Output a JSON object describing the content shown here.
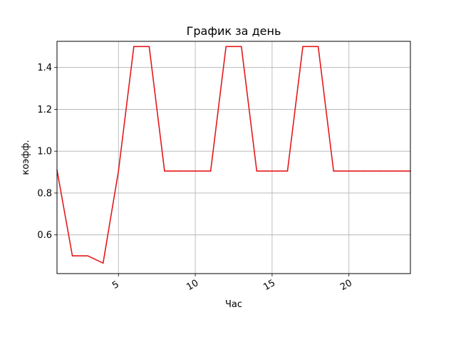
{
  "chart_data": {
    "type": "line",
    "title": "График за день",
    "xlabel": "Час",
    "ylabel": "коэфф.",
    "xlim": [
      1,
      24
    ],
    "ylim": [
      0.415,
      1.525
    ],
    "xticks": [
      5,
      10,
      15,
      20
    ],
    "yticks": [
      0.6,
      0.8,
      1.0,
      1.2,
      1.4
    ],
    "ytick_labels": [
      "0.6",
      "0.8",
      "1.0",
      "1.2",
      "1.4"
    ],
    "grid": true,
    "series": [
      {
        "color": "#e31a1c",
        "x": [
          1,
          2,
          3,
          4,
          5,
          6,
          7,
          8,
          9,
          10,
          11,
          12,
          13,
          14,
          15,
          16,
          17,
          18,
          19,
          20,
          21,
          22,
          23,
          24
        ],
        "values": [
          0.91,
          0.5,
          0.5,
          0.465,
          0.905,
          1.5,
          1.5,
          0.905,
          0.905,
          0.905,
          0.905,
          1.5,
          1.5,
          0.905,
          0.905,
          0.905,
          1.5,
          1.5,
          0.905,
          0.905,
          0.905,
          0.905,
          0.905,
          0.905
        ]
      }
    ]
  }
}
